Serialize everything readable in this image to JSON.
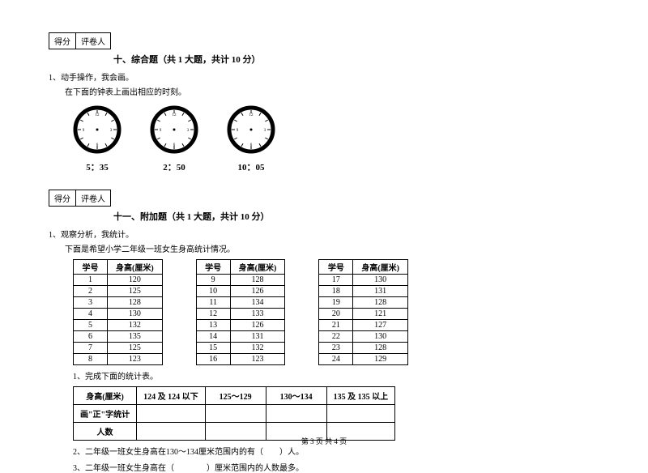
{
  "scorebox": {
    "col1": "得分",
    "col2": "评卷人"
  },
  "section10": {
    "title": "十、综合题（共 1 大题，共计 10 分）",
    "q1_num": "1、动手操作，我会画。",
    "q1_text": "在下面的钟表上画出相应的时刻。",
    "clocks": [
      {
        "label": "5：35"
      },
      {
        "label": "2：50"
      },
      {
        "label": "10：05"
      }
    ]
  },
  "section11": {
    "title": "十一、附加题（共 1 大题，共计 10 分）",
    "q1_num": "1、观察分析，我统计。",
    "q1_text": "下面是希望小学二年级一班女生身高统计情况。",
    "headers": {
      "h1": "学号",
      "h2": "身高(厘米)"
    },
    "rows": [
      {
        "a": "1",
        "b": "120",
        "c": "9",
        "d": "128",
        "e": "17",
        "f": "130"
      },
      {
        "a": "2",
        "b": "125",
        "c": "10",
        "d": "126",
        "e": "18",
        "f": "131"
      },
      {
        "a": "3",
        "b": "128",
        "c": "11",
        "d": "134",
        "e": "19",
        "f": "128"
      },
      {
        "a": "4",
        "b": "130",
        "c": "12",
        "d": "133",
        "e": "20",
        "f": "121"
      },
      {
        "a": "5",
        "b": "132",
        "c": "13",
        "d": "126",
        "e": "21",
        "f": "127"
      },
      {
        "a": "6",
        "b": "135",
        "c": "14",
        "d": "131",
        "e": "22",
        "f": "130"
      },
      {
        "a": "7",
        "b": "125",
        "c": "15",
        "d": "132",
        "e": "23",
        "f": "128"
      },
      {
        "a": "8",
        "b": "123",
        "c": "16",
        "d": "123",
        "e": "24",
        "f": "129"
      }
    ],
    "sub1": "1、完成下面的统计表。",
    "summary": {
      "h0": "身高(厘米)",
      "h1": "124 及 124 以下",
      "h2": "125～129",
      "h3": "130～134",
      "h4": "135 及 135 以上",
      "r1": "画\"正\"字统计",
      "r2": "人数"
    },
    "sub2": "2、二年级一班女生身高在130～134厘米范围内的有（　　）人。",
    "sub3": "3、二年级一班女生身高在（　　　　）厘米范围内的人数最多。"
  },
  "footer": "第 3 页 共 4 页",
  "clock_style": {
    "rim_stroke": "#000000",
    "rim_width": 5,
    "face_fill": "#ffffff",
    "tick_stroke": "#000000",
    "center_fill": "#000000"
  }
}
